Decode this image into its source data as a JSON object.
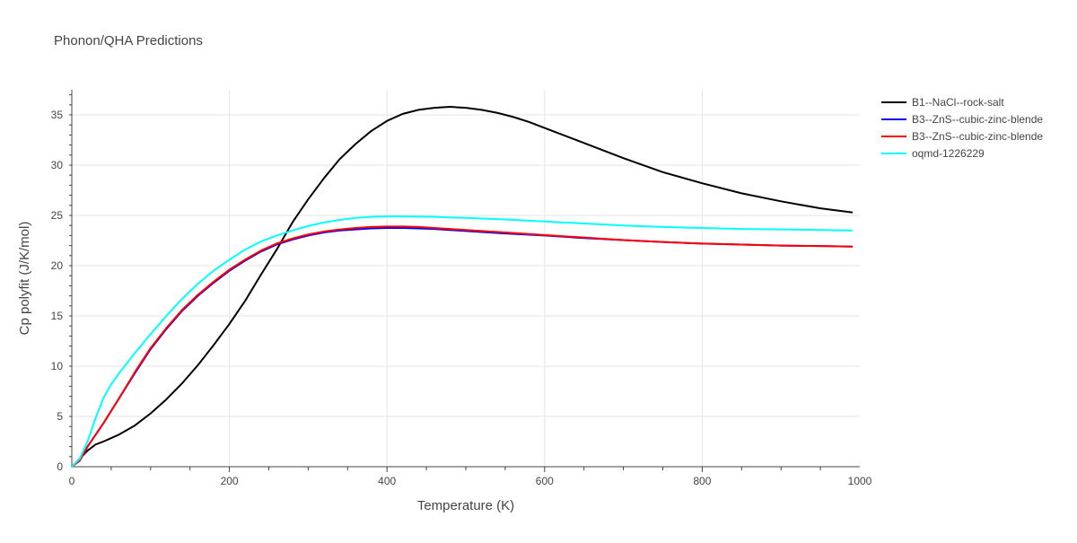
{
  "chart_data": {
    "type": "line",
    "title": "Phonon/QHA Predictions",
    "xlabel": "Temperature (K)",
    "ylabel": "Cp polyfit (J/K/mol)",
    "xlim": [
      0,
      1000
    ],
    "ylim": [
      0,
      37.5
    ],
    "x_ticks": [
      0,
      200,
      400,
      600,
      800,
      1000
    ],
    "y_ticks": [
      0,
      5,
      10,
      15,
      20,
      25,
      30,
      35
    ],
    "grid": true,
    "legend_position": "top-right",
    "series": [
      {
        "name": "B1--NaCl--rock-salt",
        "color": "#000000",
        "x": [
          0,
          10,
          20,
          30,
          40,
          60,
          80,
          100,
          120,
          140,
          160,
          180,
          200,
          220,
          240,
          260,
          280,
          300,
          320,
          340,
          360,
          380,
          400,
          420,
          440,
          460,
          480,
          500,
          520,
          540,
          560,
          580,
          600,
          650,
          700,
          750,
          800,
          850,
          900,
          950,
          990
        ],
        "y": [
          0,
          0.8,
          1.6,
          2.2,
          2.5,
          3.2,
          4.1,
          5.3,
          6.7,
          8.3,
          10.1,
          12.1,
          14.2,
          16.5,
          19.1,
          21.6,
          24.3,
          26.6,
          28.7,
          30.6,
          32.1,
          33.4,
          34.4,
          35.1,
          35.5,
          35.7,
          35.8,
          35.7,
          35.5,
          35.2,
          34.8,
          34.3,
          33.7,
          32.2,
          30.7,
          29.3,
          28.2,
          27.2,
          26.4,
          25.7,
          25.3
        ]
      },
      {
        "name": "B3--ZnS--cubic-zinc-blende",
        "color": "#0000ff",
        "x": [
          0,
          10,
          20,
          40,
          60,
          80,
          100,
          120,
          140,
          160,
          180,
          200,
          220,
          240,
          260,
          280,
          300,
          320,
          340,
          360,
          380,
          400,
          420,
          440,
          460,
          480,
          500,
          550,
          600,
          650,
          700,
          750,
          800,
          850,
          900,
          950,
          990
        ],
        "y": [
          0,
          0.6,
          2.0,
          4.3,
          6.8,
          9.3,
          11.7,
          13.7,
          15.5,
          17.0,
          18.3,
          19.5,
          20.5,
          21.4,
          22.1,
          22.6,
          23.0,
          23.3,
          23.5,
          23.6,
          23.7,
          23.75,
          23.75,
          23.7,
          23.65,
          23.55,
          23.45,
          23.2,
          23.0,
          22.75,
          22.55,
          22.35,
          22.2,
          22.1,
          22.0,
          21.95,
          21.9
        ]
      },
      {
        "name": "B3--ZnS--cubic-zinc-blende",
        "color": "#ff0000",
        "x": [
          0,
          10,
          20,
          40,
          60,
          80,
          100,
          120,
          140,
          160,
          180,
          200,
          220,
          240,
          260,
          280,
          300,
          320,
          340,
          360,
          380,
          400,
          420,
          440,
          460,
          480,
          500,
          550,
          600,
          650,
          700,
          750,
          800,
          850,
          900,
          950,
          990
        ],
        "y": [
          0,
          0.6,
          2.0,
          4.3,
          6.8,
          9.4,
          11.8,
          13.8,
          15.6,
          17.1,
          18.4,
          19.6,
          20.6,
          21.5,
          22.2,
          22.7,
          23.1,
          23.4,
          23.6,
          23.75,
          23.85,
          23.9,
          23.9,
          23.85,
          23.75,
          23.65,
          23.55,
          23.3,
          23.05,
          22.8,
          22.55,
          22.35,
          22.2,
          22.1,
          22.0,
          21.95,
          21.9
        ]
      },
      {
        "name": "oqmd-1226229",
        "color": "#00ffff",
        "x": [
          0,
          10,
          20,
          30,
          40,
          50,
          60,
          80,
          100,
          120,
          140,
          160,
          180,
          200,
          220,
          240,
          260,
          280,
          300,
          320,
          340,
          360,
          380,
          400,
          420,
          440,
          460,
          480,
          500,
          550,
          600,
          650,
          700,
          750,
          800,
          850,
          900,
          950,
          990
        ],
        "y": [
          0,
          0.8,
          2.5,
          4.8,
          6.8,
          8.2,
          9.3,
          11.3,
          13.2,
          15.0,
          16.7,
          18.2,
          19.5,
          20.6,
          21.6,
          22.4,
          23.0,
          23.5,
          23.95,
          24.3,
          24.55,
          24.75,
          24.85,
          24.9,
          24.9,
          24.88,
          24.85,
          24.8,
          24.75,
          24.6,
          24.4,
          24.2,
          24.0,
          23.85,
          23.75,
          23.65,
          23.6,
          23.55,
          23.5
        ]
      }
    ]
  }
}
